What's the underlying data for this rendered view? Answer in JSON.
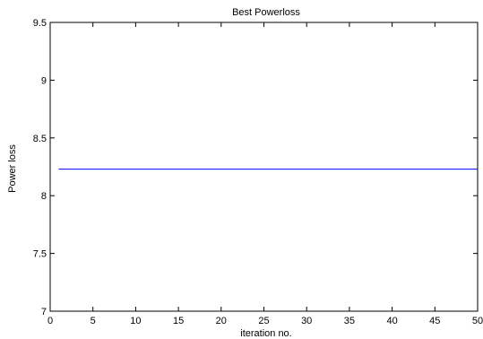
{
  "chart_data": {
    "type": "line",
    "title": "Best Powerloss",
    "xlabel": "iteration no.",
    "ylabel": "Power loss",
    "xlim": [
      0,
      50
    ],
    "ylim": [
      7,
      9.5
    ],
    "xticks": [
      0,
      5,
      10,
      15,
      20,
      25,
      30,
      35,
      40,
      45,
      50
    ],
    "yticks": [
      7,
      7.5,
      8,
      8.5,
      9,
      9.5
    ],
    "ytick_labels": [
      "7",
      "7.5",
      "8",
      "8.5",
      "9",
      "9.5"
    ],
    "grid": false,
    "series": [
      {
        "color": "#0000ff",
        "x": [
          1,
          50
        ],
        "y": [
          8.23,
          8.23
        ]
      }
    ]
  }
}
